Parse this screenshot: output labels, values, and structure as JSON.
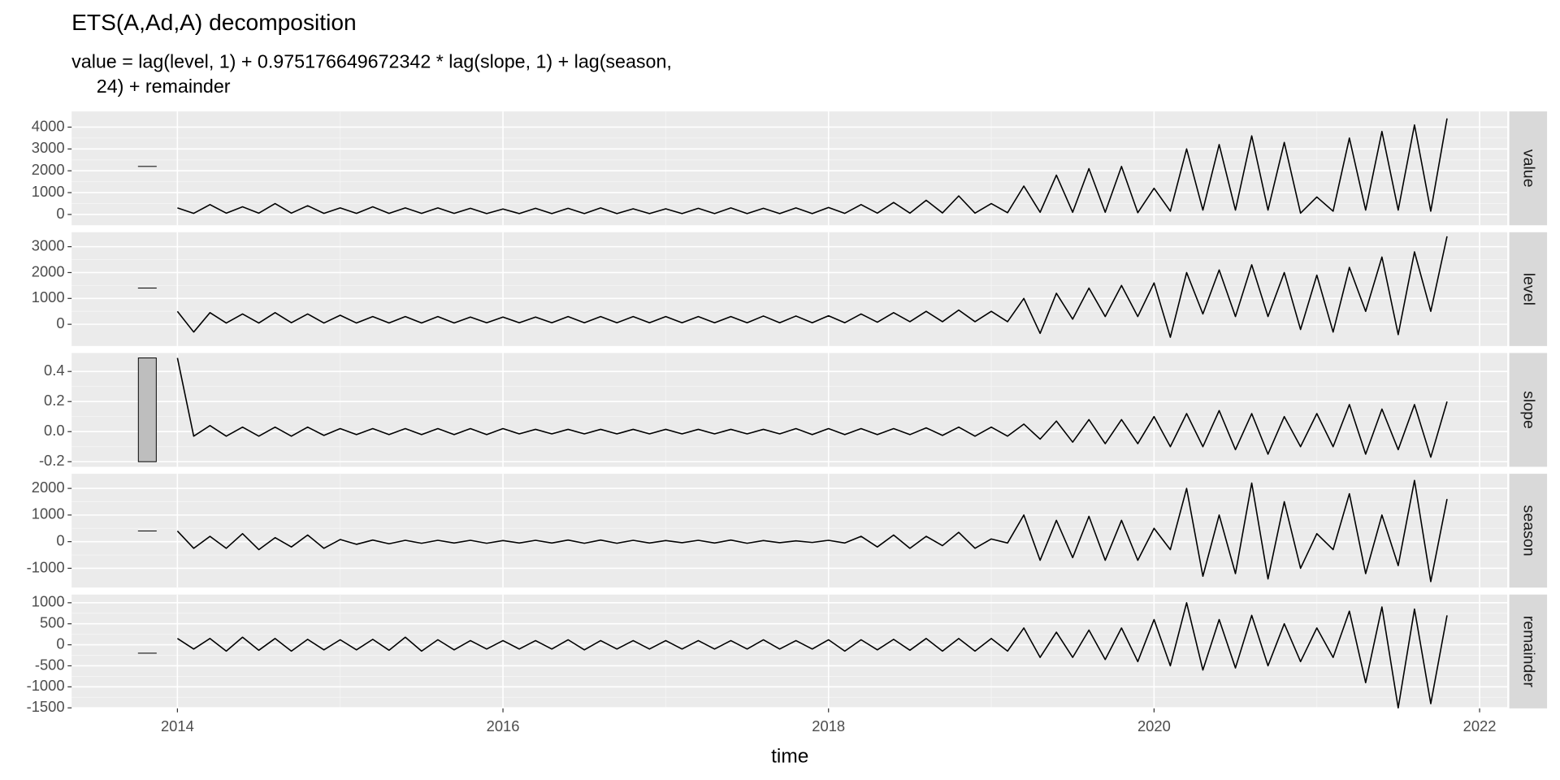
{
  "chart_data": {
    "type": "line",
    "title": "ETS(A,Ad,A) decomposition",
    "subtitle": [
      "value = lag(level, 1) + 0.975176649672342 * lag(slope, 1) + lag(season,",
      "24) + remainder"
    ],
    "xlabel": "time",
    "color": "#000000",
    "grid": true,
    "xlim": [
      2013.35,
      2022.17
    ],
    "xticks": [
      2014,
      2016,
      2018,
      2020,
      2022
    ],
    "scale_bar_x": [
      2013.76,
      2013.87
    ],
    "x": [
      2014.0,
      2014.1,
      2014.2,
      2014.3,
      2014.4,
      2014.5,
      2014.6,
      2014.7,
      2014.8,
      2014.9,
      2015.0,
      2015.1,
      2015.2,
      2015.3,
      2015.4,
      2015.5,
      2015.6,
      2015.7,
      2015.8,
      2015.9,
      2016.0,
      2016.1,
      2016.2,
      2016.3,
      2016.4,
      2016.5,
      2016.6,
      2016.7,
      2016.8,
      2016.9,
      2017.0,
      2017.1,
      2017.2,
      2017.3,
      2017.4,
      2017.5,
      2017.6,
      2017.7,
      2017.8,
      2017.9,
      2018.0,
      2018.1,
      2018.2,
      2018.3,
      2018.4,
      2018.5,
      2018.6,
      2018.7,
      2018.8,
      2018.9,
      2019.0,
      2019.1,
      2019.2,
      2019.3,
      2019.4,
      2019.5,
      2019.6,
      2019.7,
      2019.8,
      2019.9,
      2020.0,
      2020.1,
      2020.2,
      2020.3,
      2020.4,
      2020.5,
      2020.6,
      2020.7,
      2020.8,
      2020.9,
      2021.0,
      2021.1,
      2021.2,
      2021.3,
      2021.4,
      2021.5,
      2021.6,
      2021.7,
      2021.8
    ],
    "panels": [
      {
        "name": "value",
        "ylim": [
          -494,
          4719
        ],
        "yticks": [
          0,
          1000,
          2000,
          3000,
          4000
        ],
        "scale_bar": [
          2200,
          2200.69
        ],
        "values": [
          300,
          50,
          450,
          60,
          350,
          60,
          500,
          60,
          400,
          50,
          300,
          50,
          350,
          50,
          300,
          50,
          300,
          50,
          280,
          40,
          250,
          40,
          280,
          40,
          280,
          40,
          300,
          40,
          260,
          40,
          260,
          40,
          280,
          40,
          300,
          40,
          280,
          40,
          300,
          40,
          320,
          50,
          450,
          60,
          550,
          60,
          650,
          70,
          850,
          60,
          500,
          80,
          1300,
          100,
          1800,
          100,
          2100,
          100,
          2200,
          80,
          1200,
          150,
          3000,
          200,
          3200,
          200,
          3600,
          200,
          3300,
          60,
          800,
          150,
          3500,
          200,
          3800,
          200,
          4100,
          150,
          4400
        ]
      },
      {
        "name": "level",
        "ylim": [
          -840,
          3560
        ],
        "yticks": [
          0,
          1000,
          2000,
          3000
        ],
        "scale_bar": [
          1400,
          1400.69
        ],
        "values": [
          500,
          -300,
          450,
          50,
          400,
          50,
          450,
          60,
          400,
          50,
          350,
          50,
          300,
          50,
          300,
          50,
          300,
          50,
          280,
          60,
          280,
          60,
          280,
          60,
          300,
          60,
          300,
          60,
          300,
          60,
          300,
          60,
          300,
          60,
          300,
          60,
          320,
          60,
          320,
          60,
          330,
          60,
          400,
          80,
          450,
          100,
          500,
          100,
          550,
          100,
          500,
          100,
          1000,
          -350,
          1200,
          200,
          1400,
          300,
          1500,
          300,
          1600,
          -500,
          2000,
          400,
          2100,
          300,
          2300,
          300,
          2000,
          -200,
          1900,
          -300,
          2200,
          500,
          2600,
          -400,
          2800,
          500,
          3400
        ]
      },
      {
        "name": "slope",
        "ylim": [
          -0.234,
          0.523
        ],
        "yticks": [
          {
            "value": -0.2,
            "label": "-0.2"
          },
          {
            "value": 0,
            "label": "0.0"
          },
          0.2,
          0.4
        ],
        "scale_bar": [
          -0.2,
          0.49
        ],
        "values": [
          0.49,
          -0.03,
          0.04,
          -0.03,
          0.03,
          -0.03,
          0.03,
          -0.03,
          0.03,
          -0.025,
          0.02,
          -0.02,
          0.02,
          -0.02,
          0.02,
          -0.02,
          0.02,
          -0.02,
          0.02,
          -0.02,
          0.02,
          -0.015,
          0.015,
          -0.015,
          0.015,
          -0.015,
          0.015,
          -0.015,
          0.015,
          -0.015,
          0.015,
          -0.015,
          0.015,
          -0.015,
          0.015,
          -0.015,
          0.015,
          -0.015,
          0.02,
          -0.02,
          0.02,
          -0.02,
          0.02,
          -0.02,
          0.02,
          -0.02,
          0.025,
          -0.025,
          0.03,
          -0.03,
          0.03,
          -0.03,
          0.05,
          -0.05,
          0.07,
          -0.07,
          0.08,
          -0.08,
          0.08,
          -0.08,
          0.1,
          -0.1,
          0.12,
          -0.1,
          0.14,
          -0.12,
          0.12,
          -0.15,
          0.1,
          -0.1,
          0.12,
          -0.1,
          0.18,
          -0.15,
          0.15,
          -0.12,
          0.18,
          -0.17,
          0.2
        ]
      },
      {
        "name": "season",
        "ylim": [
          -1725,
          2549
        ],
        "yticks": [
          -1000,
          0,
          1000,
          2000
        ],
        "scale_bar": [
          400,
          400.69
        ],
        "values": [
          400,
          -250,
          200,
          -250,
          300,
          -300,
          150,
          -200,
          250,
          -250,
          80,
          -100,
          60,
          -80,
          50,
          -60,
          50,
          -50,
          50,
          -60,
          40,
          -50,
          50,
          -50,
          60,
          -60,
          60,
          -60,
          50,
          -50,
          40,
          -40,
          50,
          -50,
          60,
          -60,
          40,
          -40,
          30,
          -30,
          50,
          -50,
          200,
          -200,
          250,
          -250,
          200,
          -150,
          350,
          -250,
          100,
          -50,
          1000,
          -700,
          800,
          -600,
          950,
          -700,
          800,
          -700,
          500,
          -300,
          2000,
          -1300,
          1000,
          -1200,
          2200,
          -1400,
          1500,
          -1000,
          300,
          -300,
          1800,
          -1200,
          1000,
          -900,
          2300,
          -1500,
          1600
        ]
      },
      {
        "name": "remainder",
        "ylim": [
          -1512,
          1195
        ],
        "yticks": [
          -1500,
          -1000,
          -500,
          0,
          500,
          1000
        ],
        "scale_bar": [
          -200,
          -199.31
        ],
        "values": [
          150,
          -100,
          150,
          -150,
          180,
          -130,
          150,
          -150,
          130,
          -120,
          120,
          -120,
          130,
          -130,
          180,
          -150,
          120,
          -120,
          100,
          -100,
          100,
          -100,
          100,
          -100,
          120,
          -120,
          100,
          -100,
          100,
          -100,
          100,
          -100,
          100,
          -100,
          100,
          -100,
          120,
          -100,
          100,
          -100,
          120,
          -150,
          120,
          -120,
          130,
          -130,
          150,
          -150,
          150,
          -150,
          150,
          -150,
          400,
          -300,
          300,
          -300,
          350,
          -350,
          400,
          -400,
          600,
          -500,
          1000,
          -600,
          600,
          -550,
          700,
          -500,
          500,
          -400,
          400,
          -300,
          800,
          -900,
          900,
          -1500,
          850,
          -1400,
          700
        ]
      }
    ]
  }
}
